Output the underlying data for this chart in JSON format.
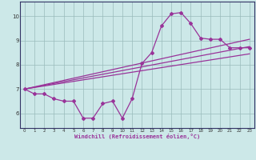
{
  "xlabel": "Windchill (Refroidissement éolien,°C)",
  "background_color": "#cce8e8",
  "line_color": "#993399",
  "grid_color": "#99bbbb",
  "xlim": [
    -0.5,
    23.5
  ],
  "ylim": [
    5.4,
    10.6
  ],
  "xticks": [
    0,
    1,
    2,
    3,
    4,
    5,
    6,
    7,
    8,
    9,
    10,
    11,
    12,
    13,
    14,
    15,
    16,
    17,
    18,
    19,
    20,
    21,
    22,
    23
  ],
  "yticks": [
    6,
    7,
    8,
    9,
    10
  ],
  "curve1_x": [
    0,
    1,
    2,
    3,
    4,
    5,
    6,
    7,
    8,
    9,
    10,
    11,
    12,
    13,
    14,
    15,
    16,
    17,
    18,
    19,
    20,
    21,
    22,
    23
  ],
  "curve1_y": [
    7.0,
    6.8,
    6.8,
    6.6,
    6.5,
    6.5,
    5.8,
    5.8,
    6.4,
    6.5,
    5.8,
    6.6,
    8.05,
    8.5,
    9.6,
    10.1,
    10.15,
    9.7,
    9.1,
    9.05,
    9.05,
    8.7,
    8.7,
    8.7
  ],
  "line1_x": [
    0,
    23
  ],
  "line1_y": [
    7.0,
    8.45
  ],
  "line2_x": [
    0,
    23
  ],
  "line2_y": [
    7.0,
    9.05
  ],
  "line3_x": [
    0,
    23
  ],
  "line3_y": [
    7.0,
    8.75
  ]
}
